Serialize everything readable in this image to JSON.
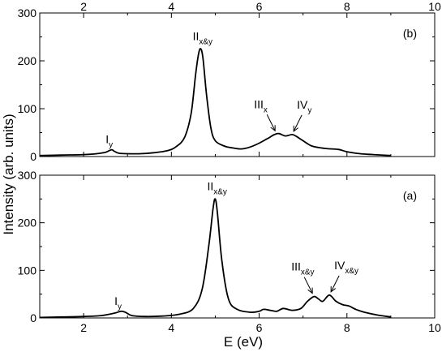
{
  "chart_data": {
    "type": "line",
    "ylabel": "Intensity (arb. units)",
    "xlabel": "E (eV)",
    "xlim": [
      1,
      10
    ],
    "x_ticks": [
      2,
      4,
      6,
      8,
      10
    ],
    "top_x_ticks": [
      2,
      4,
      6,
      8,
      10
    ],
    "panels": [
      {
        "panel_label": "(b)",
        "ylim": [
          0,
          300
        ],
        "y_ticks": [
          0,
          100,
          200,
          300
        ],
        "series": [
          {
            "x": [
              1.0,
              1.5,
              2.0,
              2.3,
              2.5,
              2.6,
              2.65,
              2.7,
              2.8,
              3.0,
              3.3,
              3.6,
              3.9,
              4.1,
              4.3,
              4.45,
              4.55,
              4.62,
              4.67,
              4.72,
              4.8,
              4.9,
              5.0,
              5.2,
              5.4,
              5.6,
              5.8,
              6.0,
              6.2,
              6.35,
              6.45,
              6.6,
              6.75,
              6.85,
              7.0,
              7.2,
              7.5,
              7.8,
              8.0,
              8.3,
              8.6,
              9.0
            ],
            "y": [
              2,
              3,
              4,
              6,
              9,
              13,
              14,
              11,
              7,
              6,
              6,
              8,
              12,
              20,
              40,
              90,
              170,
              215,
              225,
              205,
              130,
              60,
              33,
              22,
              18,
              16,
              20,
              28,
              38,
              46,
              48,
              43,
              46,
              42,
              33,
              22,
              17,
              15,
              10,
              6,
              4,
              2
            ]
          }
        ],
        "annotations": [
          {
            "label": "I",
            "sub": "y",
            "x": 2.65,
            "y": 14
          },
          {
            "label": "II",
            "sub": "x&y",
            "x": 4.67,
            "y": 225
          },
          {
            "label": "III",
            "sub": "x",
            "x": 6.4,
            "y": 47,
            "arrow": true
          },
          {
            "label": "IV",
            "sub": "y",
            "x": 6.75,
            "y": 46,
            "arrow": true
          }
        ]
      },
      {
        "panel_label": "(a)",
        "ylim": [
          0,
          300
        ],
        "y_ticks": [
          0,
          100,
          200,
          300
        ],
        "series": [
          {
            "x": [
              1.0,
              1.5,
              2.0,
              2.4,
              2.7,
              2.85,
              2.95,
              3.1,
              3.4,
              3.8,
              4.2,
              4.5,
              4.7,
              4.85,
              4.95,
              5.0,
              5.05,
              5.15,
              5.3,
              5.5,
              5.8,
              6.0,
              6.1,
              6.25,
              6.4,
              6.55,
              6.75,
              6.95,
              7.1,
              7.25,
              7.35,
              7.45,
              7.6,
              7.75,
              7.9,
              8.05,
              8.2,
              8.4,
              8.7,
              9.0
            ],
            "y": [
              1,
              2,
              3,
              5,
              10,
              14,
              12,
              5,
              3,
              4,
              8,
              20,
              60,
              150,
              230,
              250,
              220,
              120,
              40,
              18,
              12,
              14,
              18,
              16,
              14,
              20,
              16,
              20,
              35,
              45,
              40,
              35,
              48,
              35,
              28,
              25,
              18,
              12,
              6,
              2
            ]
          }
        ],
        "annotations": [
          {
            "label": "I",
            "sub": "y",
            "x": 2.85,
            "y": 14
          },
          {
            "label": "II",
            "sub": "x&y",
            "x": 5.0,
            "y": 250
          },
          {
            "label": "III",
            "sub": "x&y",
            "x": 7.25,
            "y": 45,
            "arrow": true
          },
          {
            "label": "IV",
            "sub": "x&y",
            "x": 7.6,
            "y": 48,
            "arrow": true
          }
        ]
      }
    ]
  }
}
